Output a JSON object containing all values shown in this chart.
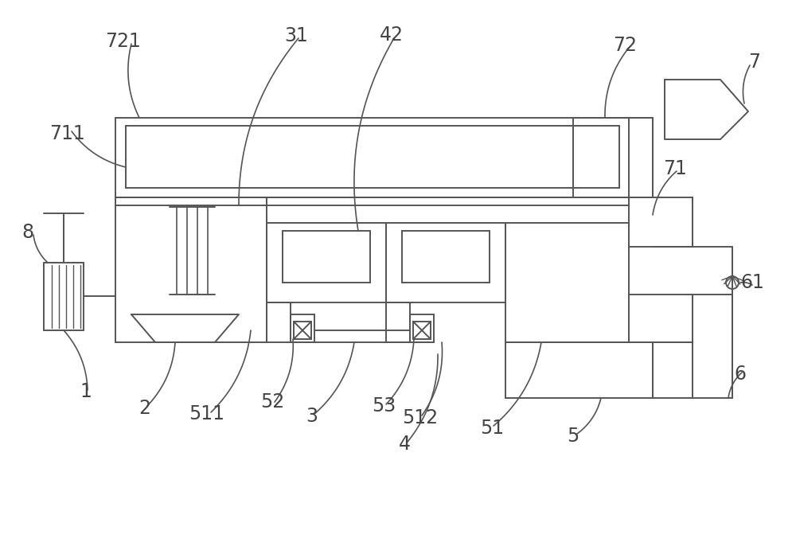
{
  "bg_color": "#ffffff",
  "line_color": "#555555",
  "lw": 1.4,
  "fig_w": 10.0,
  "fig_h": 6.96
}
